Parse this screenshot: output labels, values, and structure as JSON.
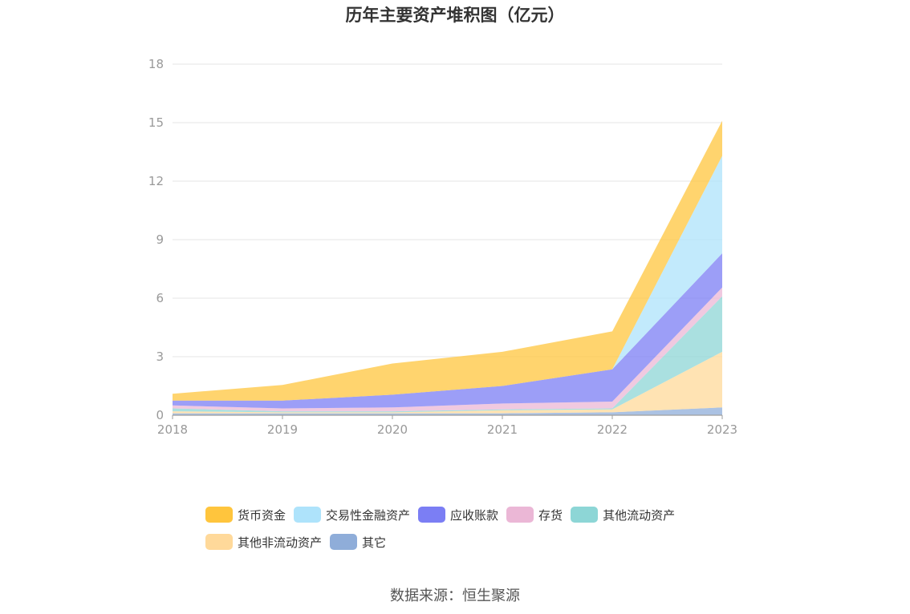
{
  "chart_data": {
    "type": "area",
    "title": "历年主要资产堆积图（亿元）",
    "stacked": true,
    "x": [
      "2018",
      "2019",
      "2020",
      "2021",
      "2022",
      "2023"
    ],
    "ylim": [
      0,
      18
    ],
    "yticks": [
      "0",
      "3",
      "6",
      "9",
      "12",
      "15",
      "18"
    ],
    "grid": true,
    "legend_position": "bottom",
    "series": [
      {
        "name": "其它",
        "color": "#8fadd9",
        "values": [
          0.1,
          0.1,
          0.1,
          0.1,
          0.15,
          0.4
        ]
      },
      {
        "name": "其他非流动资产",
        "color": "#ffd99a",
        "values": [
          0.1,
          0.05,
          0.05,
          0.15,
          0.15,
          2.85
        ]
      },
      {
        "name": "其他流动资产",
        "color": "#8dd6d6",
        "values": [
          0.15,
          0.05,
          0.05,
          0.05,
          0.05,
          2.85
        ]
      },
      {
        "name": "存货",
        "color": "#ebb7d6",
        "values": [
          0.15,
          0.15,
          0.2,
          0.3,
          0.35,
          0.45
        ]
      },
      {
        "name": "应收账款",
        "color": "#7b7ef4",
        "values": [
          0.25,
          0.4,
          0.65,
          0.9,
          1.65,
          1.75
        ]
      },
      {
        "name": "交易性金融资产",
        "color": "#aee3fb",
        "values": [
          0.0,
          0.0,
          0.0,
          0.0,
          0.0,
          5.0
        ]
      },
      {
        "name": "货币资金",
        "color": "#ffc53d",
        "values": [
          0.35,
          0.8,
          1.6,
          1.75,
          1.95,
          1.8
        ]
      }
    ]
  },
  "legend": {
    "items": [
      {
        "label": "货币资金",
        "color": "#ffc53d"
      },
      {
        "label": "交易性金融资产",
        "color": "#aee3fb"
      },
      {
        "label": "应收账款",
        "color": "#7b7ef4"
      },
      {
        "label": "存货",
        "color": "#ebb7d6"
      },
      {
        "label": "其他流动资产",
        "color": "#8dd6d6"
      },
      {
        "label": "其他非流动资产",
        "color": "#ffd99a"
      },
      {
        "label": "其它",
        "color": "#8fadd9"
      }
    ]
  },
  "source_note": "数据来源：恒生聚源"
}
